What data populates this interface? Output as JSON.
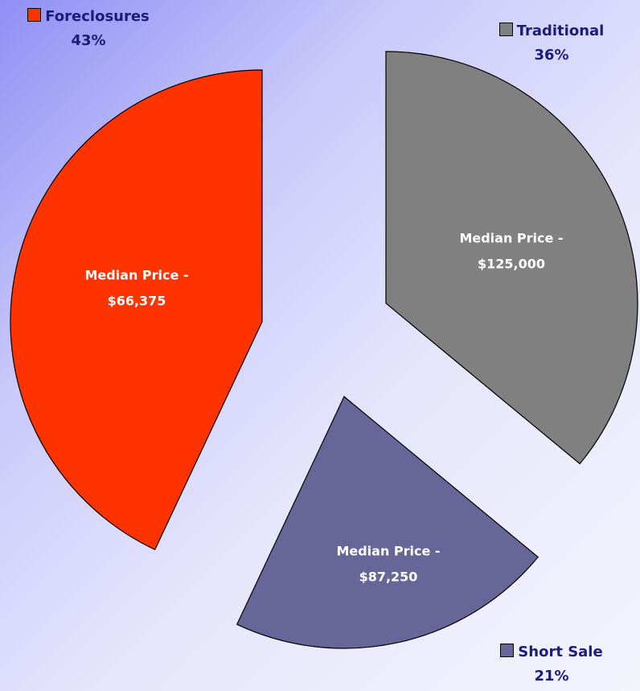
{
  "chart_data": {
    "type": "pie",
    "categories": [
      "Traditional",
      "Short Sale",
      "Foreclosures"
    ],
    "values": [
      36,
      21,
      43
    ],
    "value_labels": [
      "36%",
      "21%",
      "43%"
    ],
    "colors": [
      "#808080",
      "#666699",
      "#ff3300"
    ],
    "inner_labels": [
      [
        "Median Price -",
        "$125,000"
      ],
      [
        "Median Price -",
        "$87,250"
      ],
      [
        "Median Price -",
        "$66,375"
      ]
    ],
    "exploded": true
  }
}
